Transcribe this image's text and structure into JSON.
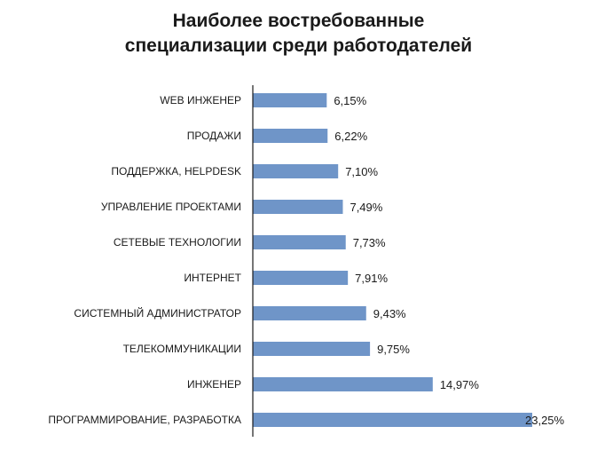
{
  "chart_data": {
    "type": "bar",
    "orientation": "horizontal",
    "title_lines": [
      "Наиболее востребованные",
      "специализации среди работодателей"
    ],
    "categories": [
      "WEB ИНЖЕНЕР",
      "ПРОДАЖИ",
      "ПОДДЕРЖКА, HELPDESK",
      "УПРАВЛЕНИЕ ПРОЕКТАМИ",
      "СЕТЕВЫЕ ТЕХНОЛОГИИ",
      "ИНТЕРНЕТ",
      "СИСТЕМНЫЙ АДМИНИСТРАТОР",
      "ТЕЛЕКОММУНИКАЦИИ",
      "ИНЖЕНЕР",
      "ПРОГРАММИРОВАНИЕ, РАЗРАБОТКА"
    ],
    "values": [
      6.15,
      6.22,
      7.1,
      7.49,
      7.73,
      7.91,
      9.43,
      9.75,
      14.97,
      23.25
    ],
    "value_labels": [
      "6,15%",
      "6,22%",
      "7,10%",
      "7,49%",
      "7,73%",
      "7,91%",
      "9,43%",
      "9,75%",
      "14,97%",
      "23,25%"
    ],
    "xlim": [
      0,
      23.25
    ],
    "grid": false,
    "legend": "none",
    "bar_color": "#6f95c8",
    "axis_color": "#1a1a1a"
  }
}
